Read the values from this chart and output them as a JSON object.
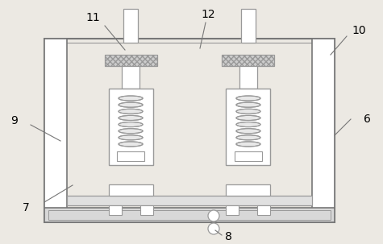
{
  "bg_color": "#ece9e3",
  "line_color": "#999999",
  "dark_line": "#777777",
  "label_fontsize": 10,
  "figsize": [
    4.75,
    3.03
  ],
  "dpi": 100
}
